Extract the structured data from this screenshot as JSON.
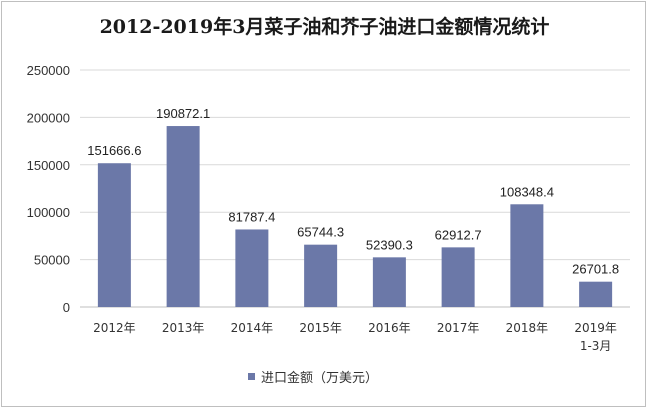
{
  "chart_data": {
    "type": "bar",
    "title": "2012-2019年3月菜子油和芥子油进口金额情况统计",
    "categories": [
      [
        "2012年"
      ],
      [
        "2013年"
      ],
      [
        "2014年"
      ],
      [
        "2015年"
      ],
      [
        "2016年"
      ],
      [
        "2017年"
      ],
      [
        "2018年"
      ],
      [
        "2019年",
        "1-3月"
      ]
    ],
    "series": [
      {
        "name": "进口金额（万美元）",
        "values": [
          151666.6,
          190872.1,
          81787.4,
          65744.3,
          52390.3,
          62912.7,
          108348.4,
          26701.8
        ],
        "color": "#6b78a8"
      }
    ],
    "data_labels": [
      "151666.6",
      "190872.1",
      "81787.4",
      "65744.3",
      "52390.3",
      "62912.7",
      "108348.4",
      "26701.8"
    ],
    "ylim": [
      0,
      250000
    ],
    "yticks": [
      0,
      50000,
      100000,
      150000,
      200000,
      250000
    ],
    "grid": true,
    "legend_position": "bottom-center"
  }
}
